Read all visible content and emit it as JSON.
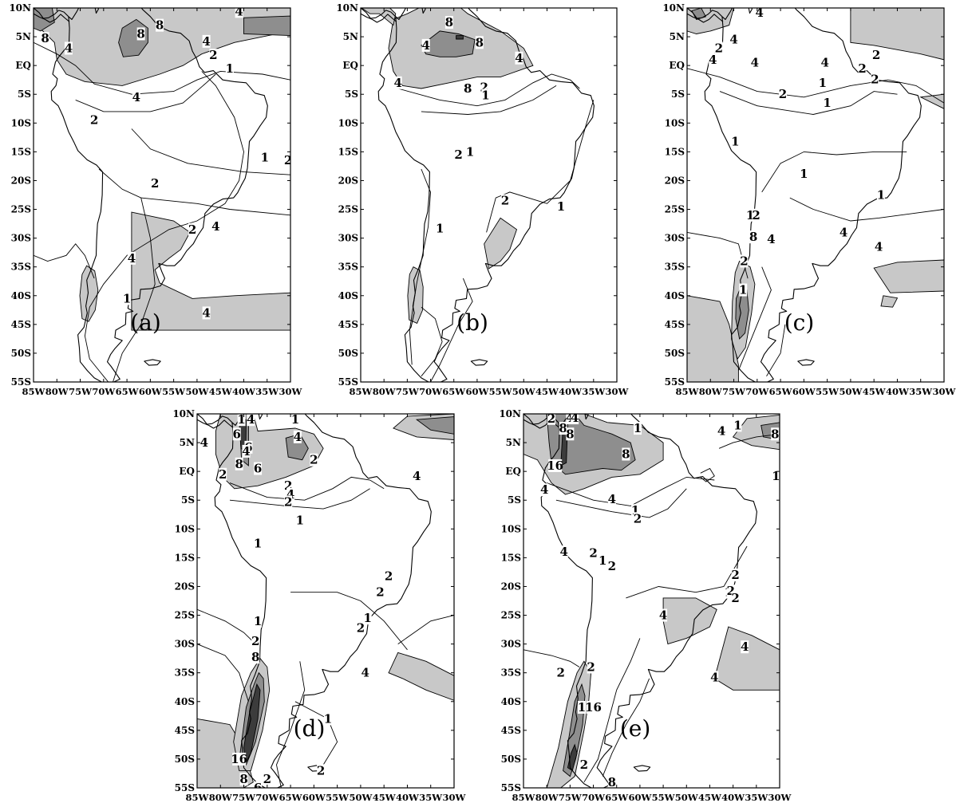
{
  "y_ticks": [
    "10N",
    "5N",
    "EQ",
    "5S",
    "10S",
    "15S",
    "20S",
    "25S",
    "30S",
    "35S",
    "40S",
    "45S",
    "50S",
    "55S"
  ],
  "x_ticks": [
    "85W",
    "80W",
    "75W",
    "70W",
    "65W",
    "60W",
    "55W",
    "50W",
    "45W",
    "40W",
    "35W",
    "30W"
  ],
  "panels": [
    {
      "id": "a",
      "label": "(a)",
      "contour_labels": [
        "4",
        "8",
        "8",
        "8",
        "4",
        "4",
        "2",
        "1",
        "4",
        "2",
        "2",
        "1",
        "2",
        "4",
        "2",
        "4",
        "1",
        "4"
      ]
    },
    {
      "id": "b",
      "label": "(b)",
      "contour_labels": [
        "8",
        "4",
        "8",
        "8",
        "4",
        "4",
        "2",
        "1",
        "2",
        "1",
        "2",
        "1",
        "1"
      ]
    },
    {
      "id": "c",
      "label": "(c)",
      "contour_labels": [
        "4",
        "2",
        "4",
        "4",
        "4",
        "4",
        "2",
        "2",
        "2",
        "1",
        "2",
        "1",
        "1",
        "1",
        "1",
        "1",
        "2",
        "4",
        "8",
        "4",
        "4",
        "2",
        "1"
      ]
    },
    {
      "id": "d",
      "label": "(d)",
      "contour_labels": [
        "1",
        "4",
        "1",
        "6",
        "4",
        "6",
        "4",
        "4",
        "8",
        "6",
        "2",
        "2",
        "2",
        "4",
        "2",
        "1",
        "1",
        "2",
        "2",
        "1",
        "2",
        "1",
        "2",
        "8",
        "4",
        "1",
        "16",
        "8",
        "6",
        "2",
        "2",
        "4"
      ]
    },
    {
      "id": "e",
      "label": "(e)",
      "contour_labels": [
        "2",
        "8",
        "4",
        "8",
        "2",
        "4",
        "8",
        "1",
        "16",
        "4",
        "4",
        "1",
        "2",
        "2",
        "1",
        "2",
        "4",
        "2",
        "1",
        "2",
        "2",
        "4",
        "4",
        "4",
        "1",
        "4",
        "8",
        "1",
        "16",
        "2",
        "1",
        "2",
        "2",
        "8"
      ]
    }
  ]
}
